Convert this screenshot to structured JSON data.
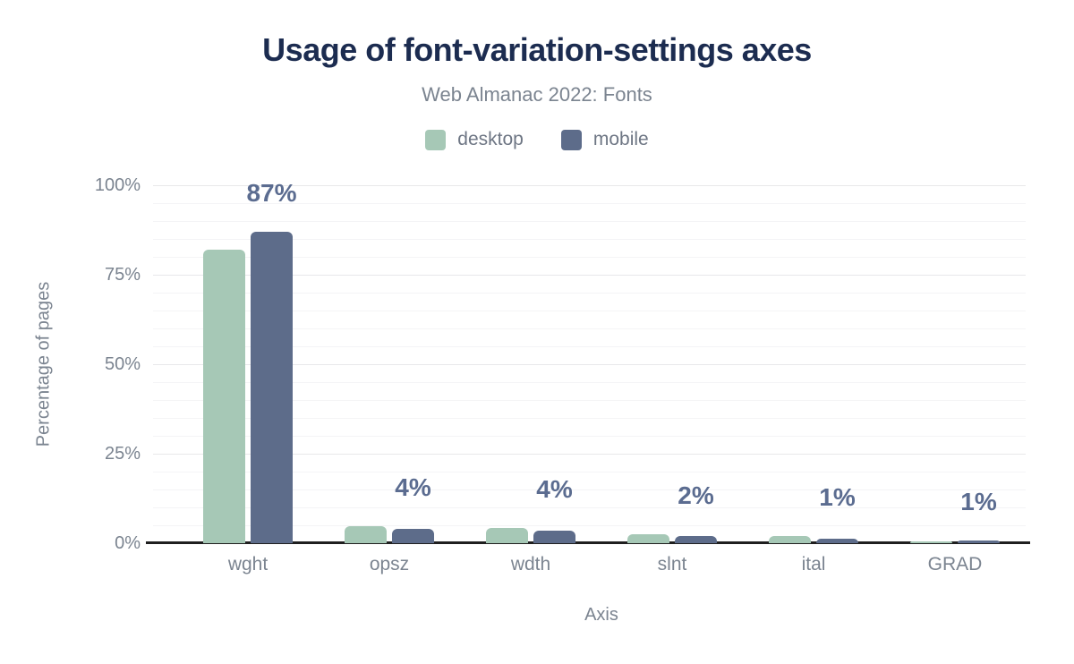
{
  "chart": {
    "title": "Usage of font-variation-settings axes",
    "subtitle": "Web Almanac 2022: Fonts",
    "x_axis_label": "Axis",
    "y_axis_label": "Percentage of pages"
  },
  "chart_data": {
    "type": "bar",
    "title": "Usage of font-variation-settings axes",
    "subtitle": "Web Almanac 2022: Fonts",
    "xlabel": "Axis",
    "ylabel": "Percentage of pages",
    "categories": [
      "wght",
      "opsz",
      "wdth",
      "slnt",
      "ital",
      "GRAD"
    ],
    "series": [
      {
        "name": "desktop",
        "color": "#a6c8b6",
        "values": [
          82,
          4.7,
          4.3,
          2.5,
          2.0,
          0.6
        ]
      },
      {
        "name": "mobile",
        "color": "#5d6c8a",
        "values": [
          87,
          4.0,
          3.6,
          1.9,
          1.2,
          0.8
        ]
      }
    ],
    "bar_labels": [
      "87%",
      "4%",
      "4%",
      "2%",
      "1%",
      "1%"
    ],
    "y_ticks": [
      "0%",
      "25%",
      "50%",
      "75%",
      "100%"
    ],
    "ylim": [
      0,
      100
    ],
    "grid": "horizontal; minor every 5%, major every 25%",
    "legend_position": "top-center"
  },
  "colors": {
    "title": "#1c2c50",
    "subtitle": "#7b8490",
    "axis_text": "#7b8490",
    "data_label": "#5b6c90",
    "axis_line": "#1f1f1f",
    "grid_major": "#e8e8ea",
    "grid_minor": "#f4f4f6",
    "desktop": "#a6c8b6",
    "mobile": "#5d6c8a"
  }
}
